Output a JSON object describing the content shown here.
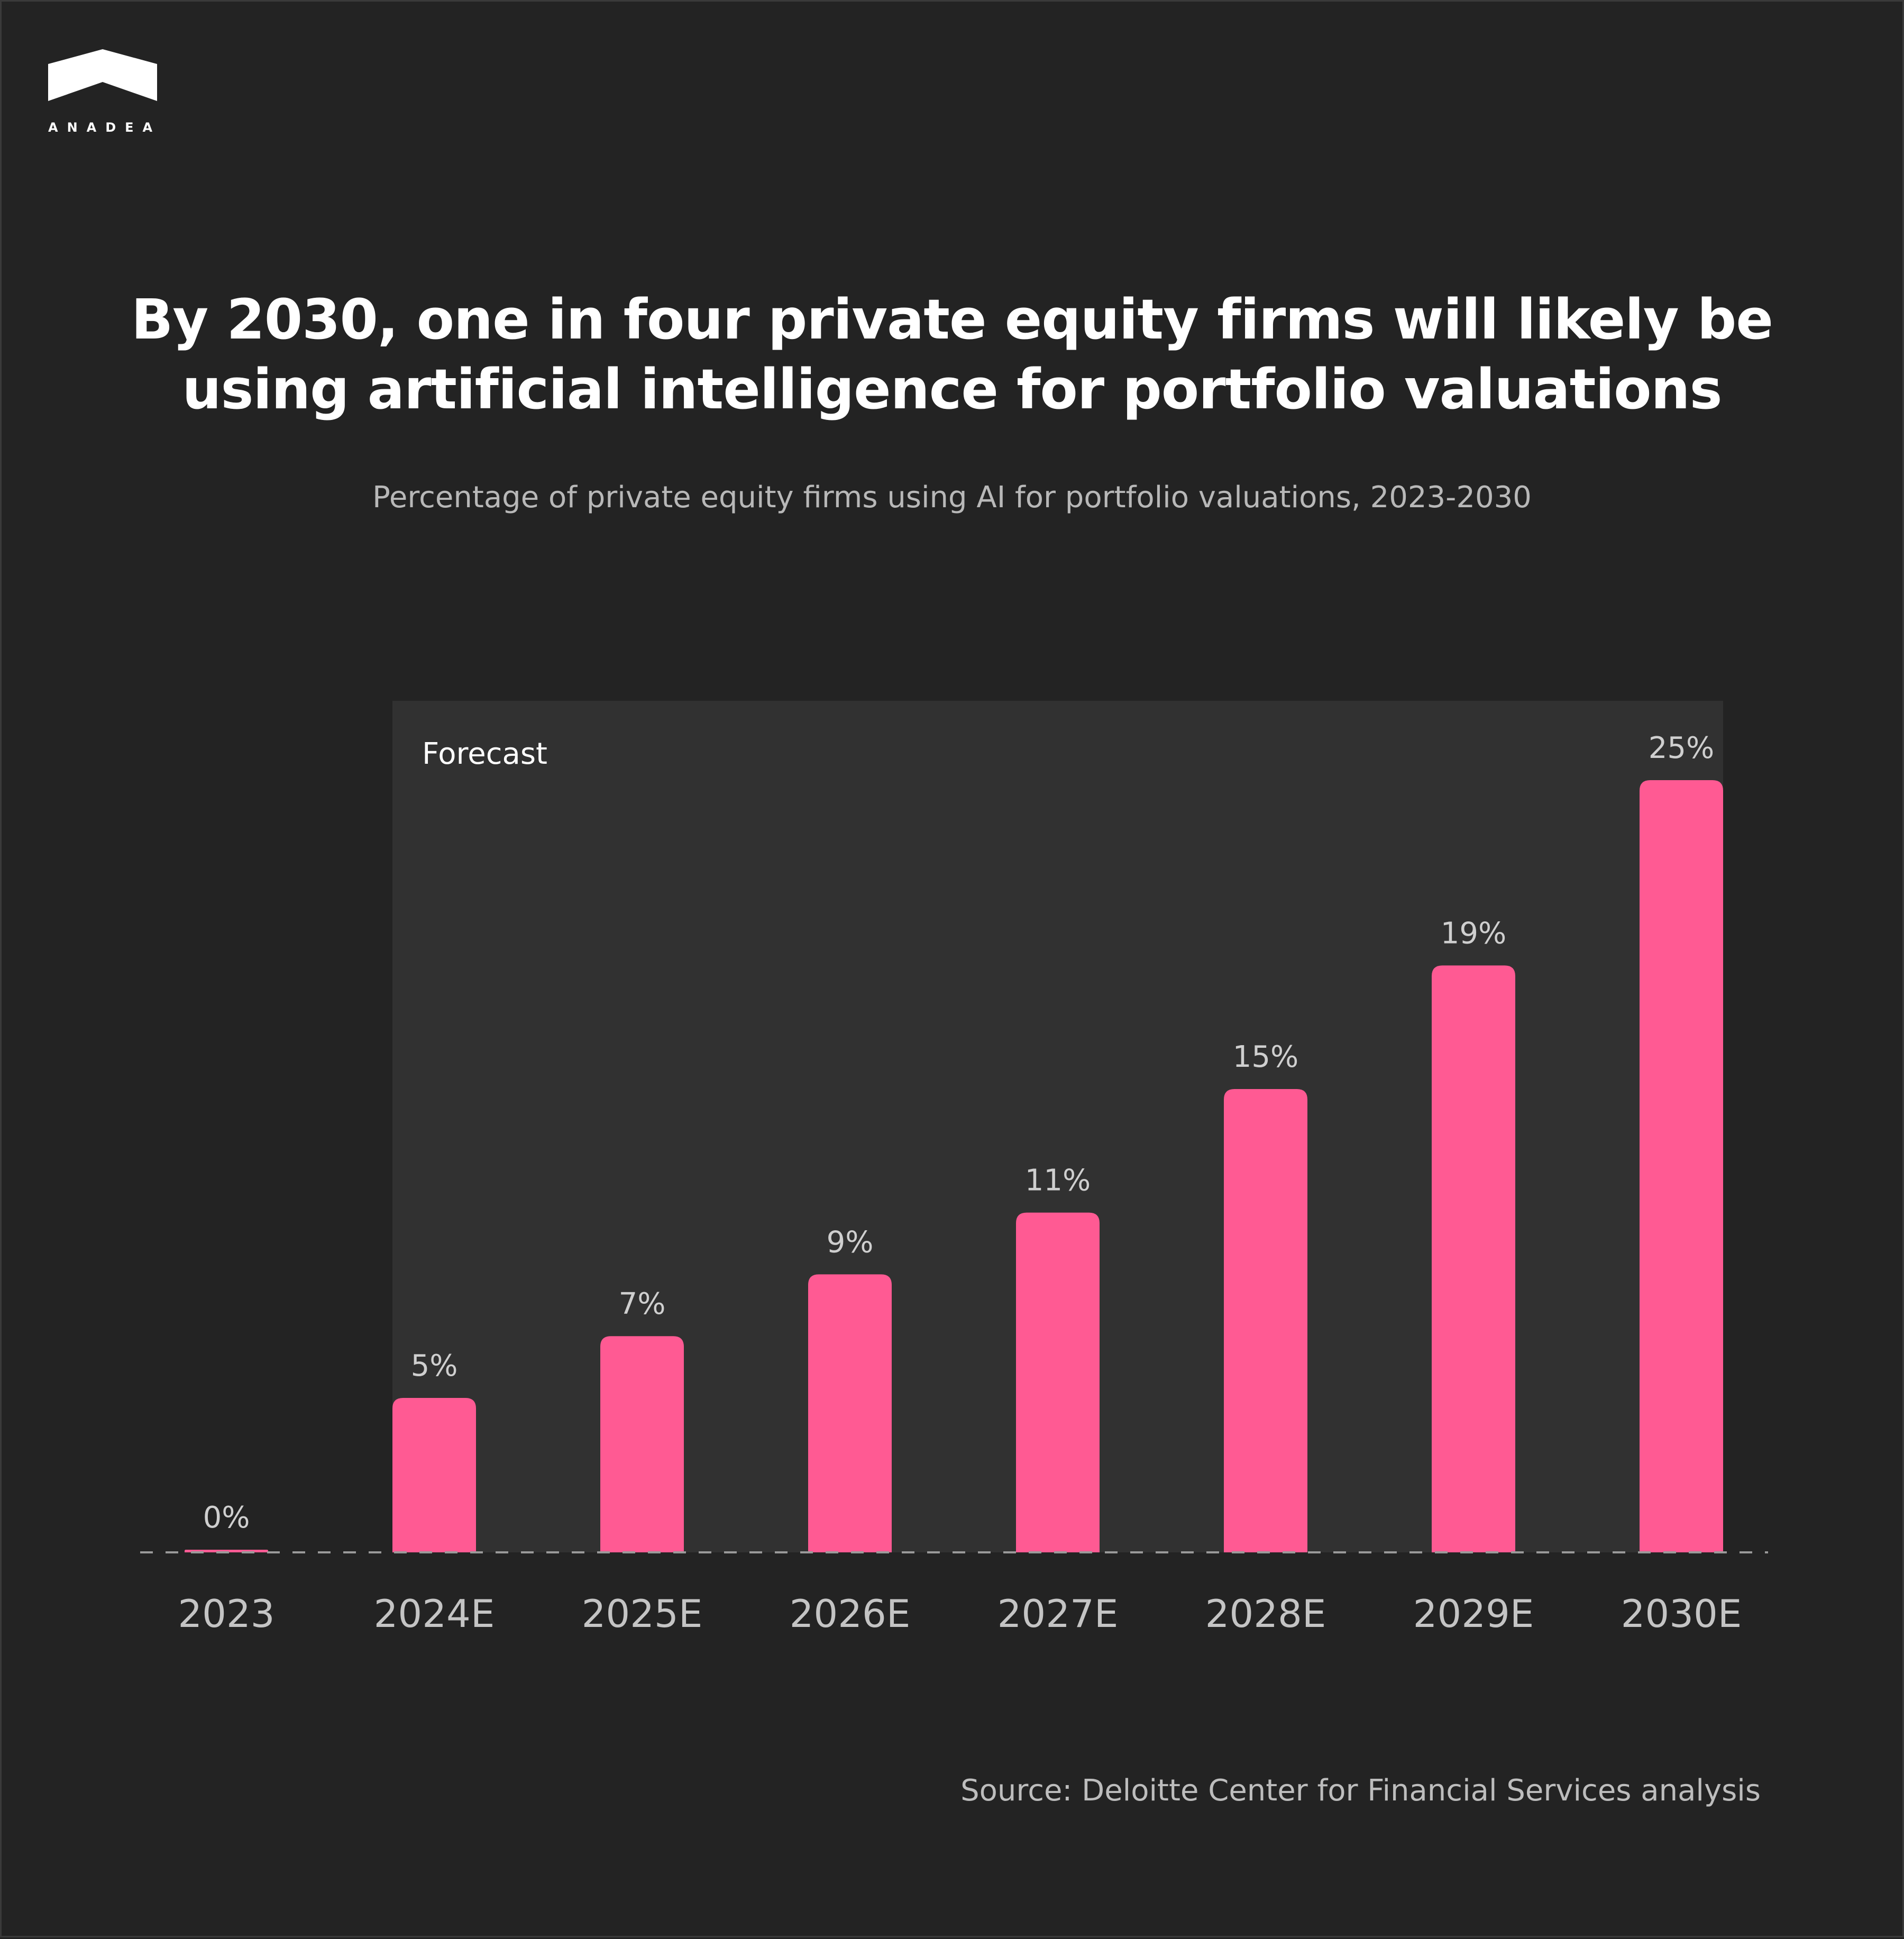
{
  "brand": {
    "logo_text": "ANADEA",
    "logo_icon": "roof-icon"
  },
  "header": {
    "title_line1": "By 2030, one in four private equity firms will likely be",
    "title_line2": "using artificial intelligence for portfolio valuations",
    "subtitle": "Percentage of private equity firms using AI for portfolio valuations, 2023-2030"
  },
  "footer": {
    "source": "Source: Deloitte Center for Financial Services analysis"
  },
  "chart_data": {
    "type": "bar",
    "categories": [
      "2023",
      "2024E",
      "2025E",
      "2026E",
      "2027E",
      "2028E",
      "2029E",
      "2030E"
    ],
    "values": [
      0,
      5,
      7,
      9,
      11,
      15,
      19,
      25
    ],
    "value_labels": [
      "0%",
      "5%",
      "7%",
      "9%",
      "11%",
      "15%",
      "19%",
      "25%"
    ],
    "unit": "%",
    "ylim": [
      0,
      25
    ],
    "grid": false,
    "forecast_region_label": "Forecast",
    "forecast_start_category": "2024E",
    "colors": {
      "bar": "#FF5A93",
      "background": "#232323",
      "forecast_panel": "#313131",
      "baseline": "#9a9a9a"
    }
  }
}
